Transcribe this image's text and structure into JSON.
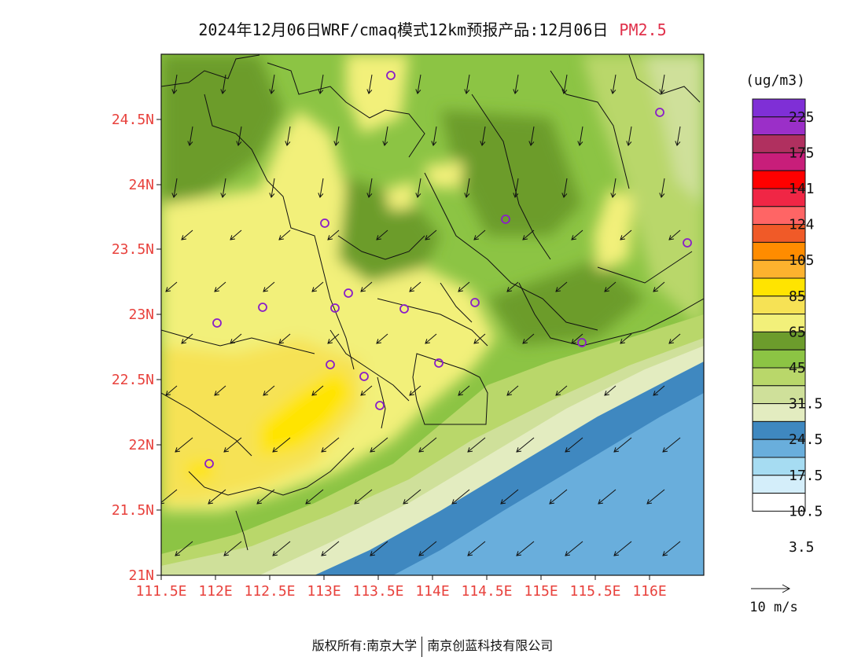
{
  "title": {
    "main": "2024年12月06日WRF/cmaq模式12km预报产品:12月06日",
    "pollutant": "PM2.5"
  },
  "map": {
    "lon_ticks": [
      "111.5E",
      "112E",
      "112.5E",
      "113E",
      "113.5E",
      "114E",
      "114.5E",
      "115E",
      "115.5E",
      "116E"
    ],
    "lat_ticks": [
      "21N",
      "21.5N",
      "22N",
      "22.5N",
      "23N",
      "23.5N",
      "24N",
      "24.5N"
    ],
    "axis_color": "#e8413c"
  },
  "colorbar": {
    "unit": "(ug/m3)",
    "labels": [
      "225",
      "175",
      "141",
      "124",
      "105",
      "85",
      "65",
      "45",
      "31.5",
      "24.5",
      "17.5",
      "10.5",
      "3.5"
    ],
    "colors_top_to_bottom": [
      "#7f2fd6",
      "#9b2fc8",
      "#b0305f",
      "#c81e7a",
      "#ff0000",
      "#f02645",
      "#ff6565",
      "#f05a28",
      "#ff8c00",
      "#fdb22e",
      "#ffe400",
      "#f6e255",
      "#f2f07a",
      "#6c9c2c",
      "#8cc444",
      "#b9d76a",
      "#cfe09a",
      "#e3ecc0",
      "#3f88c0",
      "#69aedc",
      "#a6dcf2",
      "#d4eefa",
      "#ffffff"
    ]
  },
  "wind_scale": {
    "label": "10 m/s"
  },
  "stations_color": "#8a1ec8",
  "copyright": {
    "left": "版权所有:南京大学",
    "right": "南京创蓝科技有限公司"
  }
}
